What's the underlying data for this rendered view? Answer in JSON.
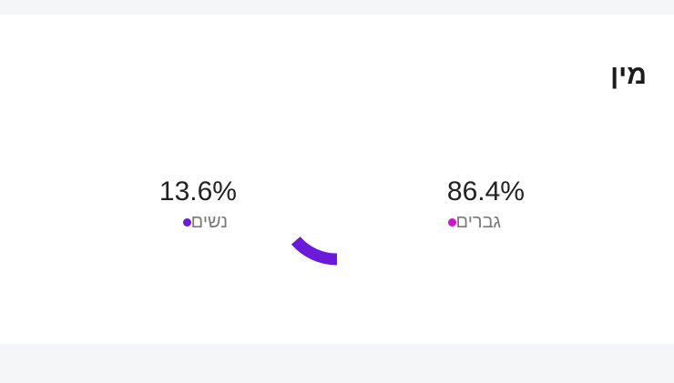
{
  "section": {
    "title": "מין"
  },
  "chart_data": {
    "type": "pie",
    "style": "donut",
    "series": [
      {
        "name": "גברים",
        "value": 86.4,
        "value_label": "86.4%",
        "color": "#cc16c9"
      },
      {
        "name": "נשים",
        "value": 13.6,
        "value_label": "13.6%",
        "color": "#6a1ad8"
      }
    ]
  }
}
